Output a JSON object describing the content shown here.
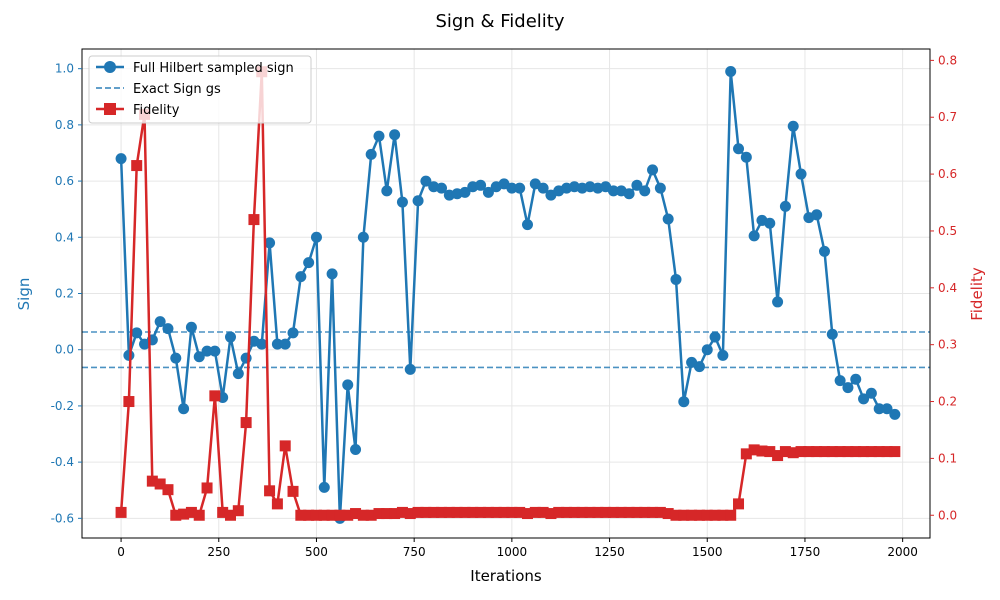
{
  "chart_data": {
    "type": "line",
    "title": "Sign & Fidelity",
    "xlabel": "Iterations",
    "ylabel_left": "Sign",
    "ylabel_right": "Fidelity",
    "xlim": [
      -100,
      2070
    ],
    "ylim_left": [
      -0.67,
      1.07
    ],
    "ylim_right": [
      -0.04,
      0.82
    ],
    "xticks": [
      0,
      250,
      500,
      750,
      1000,
      1250,
      1500,
      1750,
      2000
    ],
    "yticks_left": [
      -0.6,
      -0.4,
      -0.2,
      0.0,
      0.2,
      0.4,
      0.6,
      0.8,
      1.0
    ],
    "yticks_right": [
      0.0,
      0.1,
      0.2,
      0.3,
      0.4,
      0.5,
      0.6,
      0.7,
      0.8
    ],
    "grid": true,
    "legend_position": "top-left",
    "colors": {
      "sign": "#1f77b4",
      "fidelity": "#d62728"
    },
    "series": [
      {
        "name": "Full Hilbert sampled sign",
        "axis": "left",
        "style": "line-circle",
        "x": [
          0,
          20,
          40,
          60,
          80,
          100,
          120,
          140,
          160,
          180,
          200,
          220,
          240,
          260,
          280,
          300,
          320,
          340,
          360,
          380,
          400,
          420,
          440,
          460,
          480,
          500,
          520,
          540,
          560,
          580,
          600,
          620,
          640,
          660,
          680,
          700,
          720,
          740,
          760,
          780,
          800,
          820,
          840,
          860,
          880,
          900,
          920,
          940,
          960,
          980,
          1000,
          1020,
          1040,
          1060,
          1080,
          1100,
          1120,
          1140,
          1160,
          1180,
          1200,
          1220,
          1240,
          1260,
          1280,
          1300,
          1320,
          1340,
          1360,
          1380,
          1400,
          1420,
          1440,
          1460,
          1480,
          1500,
          1520,
          1540,
          1560,
          1580,
          1600,
          1620,
          1640,
          1660,
          1680,
          1700,
          1720,
          1740,
          1760,
          1780,
          1800,
          1820,
          1840,
          1860,
          1880,
          1900,
          1920,
          1940,
          1960,
          1980
        ],
        "y": [
          0.68,
          -0.02,
          0.06,
          0.02,
          0.035,
          0.1,
          0.075,
          -0.03,
          -0.21,
          0.08,
          -0.025,
          -0.005,
          -0.005,
          -0.17,
          0.045,
          -0.085,
          -0.03,
          0.03,
          0.02,
          0.38,
          0.02,
          0.02,
          0.06,
          0.26,
          0.31,
          0.4,
          -0.49,
          0.27,
          -0.6,
          -0.125,
          -0.355,
          0.4,
          0.695,
          0.76,
          0.565,
          0.765,
          0.525,
          -0.07,
          0.53,
          0.6,
          0.58,
          0.575,
          0.55,
          0.555,
          0.56,
          0.58,
          0.585,
          0.56,
          0.58,
          0.59,
          0.575,
          0.575,
          0.445,
          0.59,
          0.575,
          0.55,
          0.565,
          0.575,
          0.58,
          0.575,
          0.58,
          0.575,
          0.58,
          0.565,
          0.565,
          0.555,
          0.585,
          0.565,
          0.64,
          0.575,
          0.465,
          0.25,
          -0.185,
          -0.045,
          -0.06,
          0.0,
          0.045,
          -0.02,
          0.99,
          0.715,
          0.685,
          0.405,
          0.46,
          0.45,
          0.17,
          0.51,
          0.795,
          0.625,
          0.47,
          0.48,
          0.35,
          0.055,
          -0.11,
          -0.135,
          -0.105,
          -0.175,
          -0.155,
          -0.21,
          -0.21,
          -0.23
        ]
      },
      {
        "name": "Exact Sign gs",
        "axis": "left",
        "style": "dashed-hline",
        "values": [
          0.063,
          -0.063
        ]
      },
      {
        "name": "Fidelity",
        "axis": "right",
        "style": "line-square",
        "x": [
          0,
          20,
          40,
          60,
          80,
          100,
          120,
          140,
          160,
          180,
          200,
          220,
          240,
          260,
          280,
          300,
          320,
          340,
          360,
          380,
          400,
          420,
          440,
          460,
          480,
          500,
          520,
          540,
          560,
          580,
          600,
          620,
          640,
          660,
          680,
          700,
          720,
          740,
          760,
          780,
          800,
          820,
          840,
          860,
          880,
          900,
          920,
          940,
          960,
          980,
          1000,
          1020,
          1040,
          1060,
          1080,
          1100,
          1120,
          1140,
          1160,
          1180,
          1200,
          1220,
          1240,
          1260,
          1280,
          1300,
          1320,
          1340,
          1360,
          1380,
          1400,
          1420,
          1440,
          1460,
          1480,
          1500,
          1520,
          1540,
          1560,
          1580,
          1600,
          1620,
          1640,
          1660,
          1680,
          1700,
          1720,
          1740,
          1760,
          1780,
          1800,
          1820,
          1840,
          1860,
          1880,
          1900,
          1920,
          1940,
          1960,
          1980
        ],
        "y": [
          0.005,
          0.2,
          0.615,
          0.705,
          0.06,
          0.055,
          0.045,
          0.0,
          0.002,
          0.005,
          0.0,
          0.048,
          0.21,
          0.005,
          0.0,
          0.008,
          0.163,
          0.52,
          0.78,
          0.043,
          0.02,
          0.122,
          0.042,
          0.0,
          0.0,
          0.0,
          0.0,
          0.0,
          0.0,
          0.0,
          0.003,
          0.0,
          0.0,
          0.003,
          0.003,
          0.003,
          0.005,
          0.003,
          0.005,
          0.005,
          0.005,
          0.005,
          0.005,
          0.005,
          0.005,
          0.005,
          0.005,
          0.005,
          0.005,
          0.005,
          0.005,
          0.005,
          0.003,
          0.005,
          0.005,
          0.003,
          0.005,
          0.005,
          0.005,
          0.005,
          0.005,
          0.005,
          0.005,
          0.005,
          0.005,
          0.005,
          0.005,
          0.005,
          0.005,
          0.005,
          0.003,
          0.0,
          0.0,
          0.0,
          0.0,
          0.0,
          0.0,
          0.0,
          0.0,
          0.02,
          0.108,
          0.115,
          0.113,
          0.112,
          0.105,
          0.112,
          0.11,
          0.112,
          0.112,
          0.112,
          0.112,
          0.112,
          0.112,
          0.112,
          0.112,
          0.112,
          0.112,
          0.112,
          0.112,
          0.112
        ]
      }
    ]
  }
}
